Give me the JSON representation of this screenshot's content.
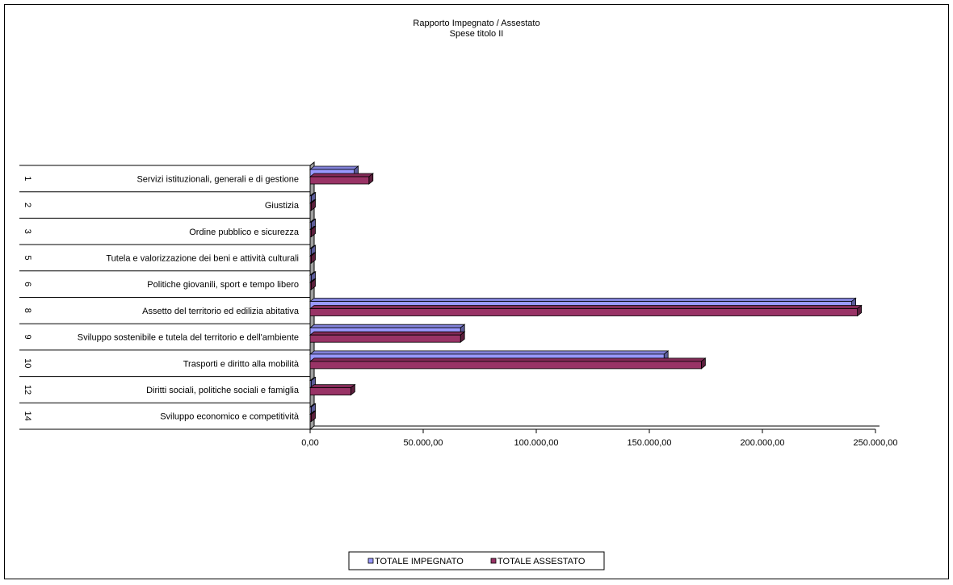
{
  "chart_data": {
    "type": "bar",
    "orientation": "horizontal",
    "title": "Rapporto Impegnato / Assestato",
    "subtitle": "Spese titolo II",
    "categories": [
      {
        "code": "1",
        "label": "Servizi istituzionali, generali e di gestione"
      },
      {
        "code": "2",
        "label": "Giustizia"
      },
      {
        "code": "3",
        "label": "Ordine pubblico e sicurezza"
      },
      {
        "code": "5",
        "label": "Tutela e valorizzazione dei beni e attività culturali"
      },
      {
        "code": "6",
        "label": "Politiche giovanili, sport e tempo libero"
      },
      {
        "code": "8",
        "label": "Assetto del territorio ed edilizia abitativa"
      },
      {
        "code": "9",
        "label": "Sviluppo sostenibile e tutela del territorio e dell'ambiente"
      },
      {
        "code": "10",
        "label": "Trasporti e diritto alla mobilità"
      },
      {
        "code": "12",
        "label": "Diritti sociali, politiche sociali e famiglia"
      },
      {
        "code": "14",
        "label": "Sviluppo economico e competitività"
      }
    ],
    "series": [
      {
        "name": "TOTALE IMPEGNATO",
        "color": "#9999ff",
        "values": [
          19500,
          0,
          0,
          0,
          0,
          239500,
          66500,
          156500,
          0,
          0
        ]
      },
      {
        "name": "TOTALE ASSESTATO",
        "color": "#993366",
        "values": [
          26000,
          0,
          0,
          0,
          0,
          242000,
          66500,
          173000,
          18000,
          0
        ]
      }
    ],
    "xlim": [
      0,
      250000
    ],
    "xticks": [
      0,
      50000,
      100000,
      150000,
      200000,
      250000
    ],
    "xtick_labels": [
      "0,00",
      "50.000,00",
      "100.000,00",
      "150.000,00",
      "200.000,00",
      "250.000,00"
    ],
    "grid": false,
    "legend": "bottom"
  }
}
